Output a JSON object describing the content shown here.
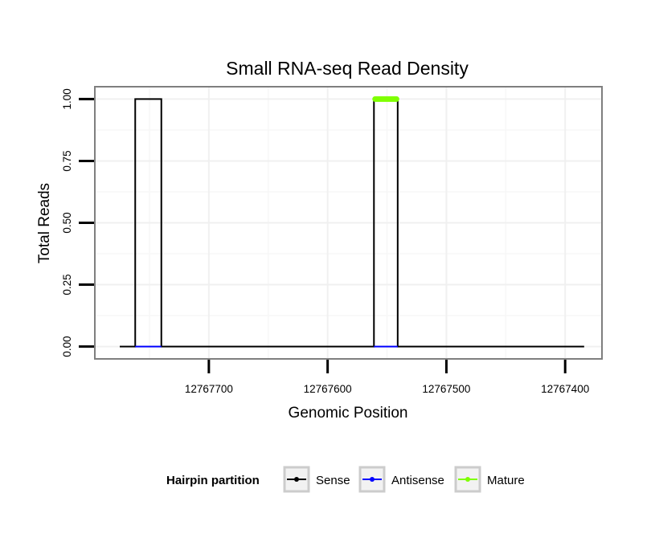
{
  "chart_data": {
    "type": "line",
    "title": "Small RNA-seq Read Density",
    "xlabel": "Genomic Position",
    "ylabel": "Total Reads",
    "x_reversed": true,
    "xlim": [
      12767796,
      12767369
    ],
    "ylim": [
      -0.05,
      1.05
    ],
    "x_ticks": [
      12767700,
      12767600,
      12767500,
      12767400
    ],
    "x_tick_labels": [
      "12767700",
      "12767600",
      "12767500",
      "12767400"
    ],
    "y_ticks": [
      0,
      0.25,
      0.5,
      0.75,
      1
    ],
    "y_tick_labels": [
      "0.00",
      "0.25",
      "0.50",
      "0.75",
      "1.00"
    ],
    "grid": true,
    "legend_position": "bottom",
    "legend_title": "Hairpin partition",
    "series": [
      {
        "name": "Sense",
        "color": "#000000",
        "x": [
          12767775,
          12767762,
          12767762,
          12767740,
          12767740,
          12767561,
          12767561,
          12767541,
          12767541,
          12767384
        ],
        "y": [
          0,
          0,
          1,
          1,
          0,
          0,
          1,
          1,
          0,
          0
        ]
      },
      {
        "name": "Antisense",
        "color": "#0000ff",
        "x": [
          12767762,
          12767740,
          12767561,
          12767541
        ],
        "y": [
          0,
          0,
          0,
          0
        ],
        "segments": [
          [
            0,
            1
          ],
          [
            2,
            3
          ]
        ]
      },
      {
        "name": "Mature",
        "color": "#7fff00",
        "x": [
          12767560,
          12767542
        ],
        "y": [
          1,
          1
        ]
      }
    ]
  }
}
